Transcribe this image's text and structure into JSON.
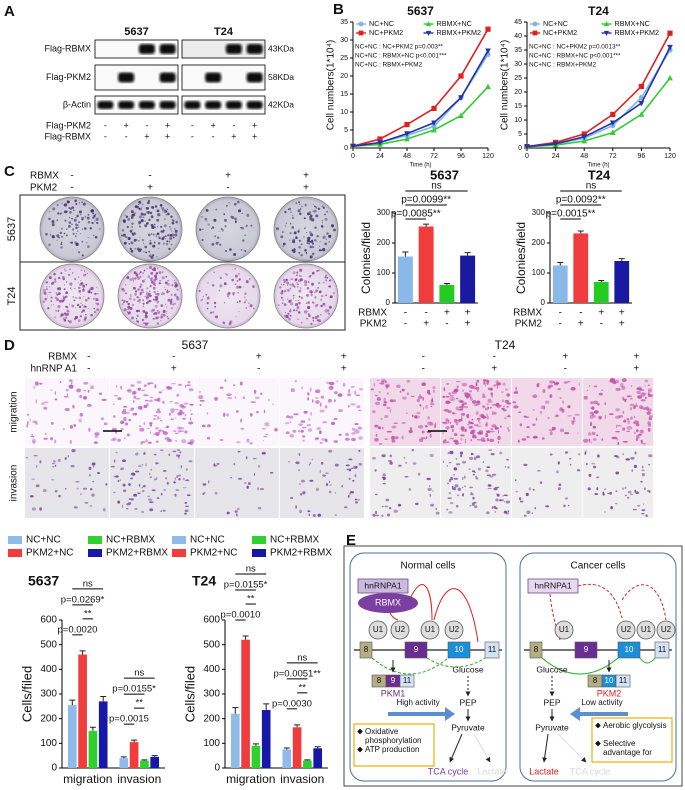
{
  "panel_labels": [
    "A",
    "B",
    "C",
    "D",
    "E"
  ],
  "blot": {
    "cell_lines": [
      "5637",
      "T24"
    ],
    "rows": [
      "Flag-RBMX",
      "Flag-PKM2",
      "β-Actin"
    ],
    "sizes": [
      "43KDa",
      "58KDa",
      "42KDa"
    ],
    "conditions": [
      {
        "name": "Flag-PKM2",
        "signs": [
          "-",
          "+",
          "-",
          "+",
          "-",
          "+",
          "-",
          "+"
        ]
      },
      {
        "name": "Flag-RBMX",
        "signs": [
          "-",
          "-",
          "+",
          "+",
          "-",
          "-",
          "+",
          "+"
        ]
      }
    ]
  },
  "colony": {
    "cell_lines": [
      "5637",
      "T24"
    ],
    "conditions": [
      {
        "name": "RBMX",
        "signs": [
          "-",
          "-",
          "+",
          "+"
        ]
      },
      {
        "name": "PKM2",
        "signs": [
          "-",
          "+",
          "-",
          "+"
        ]
      }
    ]
  },
  "transwell": {
    "cell_lines": [
      "5637",
      "T24"
    ],
    "assays": [
      "migration",
      "invasion"
    ],
    "conditions": [
      {
        "name": "RBMX",
        "signs": [
          "-",
          "-",
          "+",
          "+",
          "-",
          "-",
          "+",
          "+"
        ]
      },
      {
        "name": "hnRNP A1",
        "signs": [
          "-",
          "+",
          "-",
          "+",
          "-",
          "+",
          "-",
          "+"
        ]
      }
    ]
  },
  "diagram": {
    "normal": {
      "title": "Normal cells",
      "proteins": [
        "hnRNPA1",
        "RBMX"
      ],
      "snrnps": [
        "U1",
        "U2",
        "U1",
        "U2"
      ],
      "exons": [
        "8",
        "9",
        "10",
        "11"
      ],
      "mrna": [
        "8",
        "9",
        "11"
      ],
      "isoform": "PKM1",
      "activity": "High activity",
      "metabolites": [
        "Glucose",
        "PEP",
        "Pyruvate"
      ],
      "products": [
        "TCA cycle",
        "Lactate"
      ],
      "features": [
        "Oxidative phosphorylation",
        "ATP production"
      ]
    },
    "cancer": {
      "title": "Cancer cells",
      "proteins": [
        "hnRNPA1"
      ],
      "snrnps": [
        "U1",
        "U2",
        "U1",
        "U2"
      ],
      "exons": [
        "8",
        "9",
        "10",
        "11"
      ],
      "mrna": [
        "8",
        "10",
        "11"
      ],
      "isoform": "PKM2",
      "activity": "Low activity",
      "metabolites": [
        "Glucose",
        "PEP",
        "Pyruvate"
      ],
      "products": [
        "Lactate",
        "TCA cycle"
      ],
      "features": [
        "Aerobic glycolysis",
        "Selective advantage for cancer"
      ]
    }
  },
  "chart_data": [
    {
      "type": "line",
      "title": "5637",
      "x": [
        0,
        24,
        48,
        72,
        96,
        120
      ],
      "xlim": [
        0,
        120
      ],
      "xticks": [
        0,
        24,
        48,
        72,
        96,
        120
      ],
      "ylim": [
        0,
        35
      ],
      "yticks": [
        0,
        5,
        10,
        15,
        20,
        25,
        30,
        35
      ],
      "x_label": "Time (h)",
      "y_label": "Cell numbers(1*10⁴)",
      "series": [
        {
          "name": "NC+NC",
          "color": "#7fb3e6",
          "marker": "circle",
          "values": [
            0.5,
            1.5,
            3.5,
            6,
            14,
            26
          ]
        },
        {
          "name": "NC+PKM2",
          "color": "#e02020",
          "marker": "square",
          "values": [
            0.5,
            2.5,
            6.5,
            11,
            20,
            33
          ]
        },
        {
          "name": "RBMX+NC",
          "color": "#33cc33",
          "marker": "triangle-up",
          "values": [
            0.5,
            1,
            2.5,
            5,
            9,
            17
          ]
        },
        {
          "name": "RBMX+PKM2",
          "color": "#2233aa",
          "marker": "triangle-down",
          "values": [
            0.5,
            1.5,
            4,
            7,
            14,
            27
          ]
        }
      ],
      "annotations": [
        "NC+NC : NC+PKM2 p=0.003**",
        "NC+NC : RBMX+NC p<0.001***",
        "NC+NC : RBMX+PKM2"
      ]
    },
    {
      "type": "line",
      "title": "T24",
      "x": [
        0,
        24,
        48,
        72,
        96,
        120
      ],
      "xlim": [
        0,
        120
      ],
      "xticks": [
        0,
        24,
        48,
        72,
        96,
        120
      ],
      "ylim": [
        0,
        45
      ],
      "yticks": [
        0,
        5,
        10,
        15,
        20,
        25,
        30,
        35,
        40,
        45
      ],
      "x_label": "Time (h)",
      "y_label": "Cell numbers(1*10⁴)",
      "series": [
        {
          "name": "NC+NC",
          "color": "#7fb3e6",
          "marker": "circle",
          "values": [
            0.5,
            1.5,
            3.5,
            8,
            18,
            35
          ]
        },
        {
          "name": "NC+PKM2",
          "color": "#e02020",
          "marker": "square",
          "values": [
            0.5,
            2,
            5,
            12,
            22,
            41
          ]
        },
        {
          "name": "RBMX+NC",
          "color": "#33cc33",
          "marker": "triangle-up",
          "values": [
            0.5,
            1,
            2.5,
            5.5,
            12,
            25
          ]
        },
        {
          "name": "RBMX+PKM2",
          "color": "#2233aa",
          "marker": "triangle-down",
          "values": [
            0.5,
            1.5,
            4,
            9,
            16,
            36
          ]
        }
      ],
      "annotations": [
        "NC+NC : NC+PKM2 p=0.0013**",
        "NC+NC : RBMX+NC p<0.001***",
        "NC+NC : RBMX+PKM2"
      ]
    },
    {
      "type": "bar",
      "title": "5637",
      "values": [
        155,
        255,
        60,
        158
      ],
      "errors": [
        15,
        8,
        5,
        10
      ],
      "colors": [
        "#8ab8e8",
        "#f03c3c",
        "#22cc22",
        "#1a1aa0"
      ],
      "ylim": [
        0,
        300
      ],
      "yticks": [
        0,
        100,
        200,
        300
      ],
      "y_label": "Colonies/field",
      "annotations": [
        "ns",
        "p=0.0099**",
        "p=0.0085**"
      ],
      "group_labels": [
        {
          "name": "RBMX",
          "signs": [
            "-",
            "-",
            "+",
            "+"
          ]
        },
        {
          "name": "PKM2",
          "signs": [
            "-",
            "+",
            "-",
            "+"
          ]
        }
      ]
    },
    {
      "type": "bar",
      "title": "T24",
      "values": [
        125,
        232,
        70,
        140
      ],
      "errors": [
        10,
        8,
        5,
        8
      ],
      "colors": [
        "#8ab8e8",
        "#f03c3c",
        "#22cc22",
        "#1a1aa0"
      ],
      "ylim": [
        0,
        300
      ],
      "yticks": [
        0,
        100,
        200,
        300
      ],
      "y_label": "Colonies/field",
      "annotations": [
        "ns",
        "p=0.0092**",
        "p=0.0015**"
      ],
      "group_labels": [
        {
          "name": "RBMX",
          "signs": [
            "-",
            "-",
            "+",
            "+"
          ]
        },
        {
          "name": "PKM2",
          "signs": [
            "-",
            "+",
            "-",
            "+"
          ]
        }
      ]
    },
    {
      "type": "grouped_bar",
      "title": "5637",
      "categories": [
        "migration",
        "invasion"
      ],
      "ylim": [
        0,
        600
      ],
      "yticks": [
        0,
        100,
        200,
        300,
        400,
        500,
        600
      ],
      "y_label": "Cells/filed",
      "series": [
        {
          "name": "NC+NC",
          "color": "#8fbbe8",
          "values": [
            255,
            40
          ],
          "errors": [
            20,
            5
          ]
        },
        {
          "name": "PKM2+NC",
          "color": "#f03c3c",
          "values": [
            460,
            105
          ],
          "errors": [
            15,
            8
          ]
        },
        {
          "name": "NC+RBMX",
          "color": "#2ed12e",
          "values": [
            150,
            30
          ],
          "errors": [
            15,
            3
          ]
        },
        {
          "name": "PKM2+RBMX",
          "color": "#1818a8",
          "values": [
            270,
            45
          ],
          "errors": [
            20,
            5
          ]
        }
      ],
      "annotations": [
        [
          "ns",
          "p=0.0269*",
          "**",
          "p=0.0020"
        ],
        [
          "ns",
          "p=0.0155*",
          "**",
          "p=0.0015"
        ]
      ]
    },
    {
      "type": "grouped_bar",
      "title": "T24",
      "categories": [
        "migration",
        "invasion"
      ],
      "ylim": [
        0,
        600
      ],
      "yticks": [
        0,
        100,
        200,
        300,
        400,
        500,
        600
      ],
      "y_label": "Cells/filed",
      "series": [
        {
          "name": "NC+NC",
          "color": "#8fbbe8",
          "values": [
            220,
            75
          ],
          "errors": [
            25,
            6
          ]
        },
        {
          "name": "PKM2+NC",
          "color": "#f03c3c",
          "values": [
            520,
            165
          ],
          "errors": [
            15,
            10
          ]
        },
        {
          "name": "NC+RBMX",
          "color": "#2ed12e",
          "values": [
            90,
            30
          ],
          "errors": [
            8,
            3
          ]
        },
        {
          "name": "PKM2+RBMX",
          "color": "#1818a8",
          "values": [
            235,
            80
          ],
          "errors": [
            25,
            6
          ]
        }
      ],
      "annotations": [
        [
          "ns",
          "p=0.0155*",
          "**",
          "p=0.0010"
        ],
        [
          "ns",
          "p=0.0051**",
          "**",
          "p=0.0030"
        ]
      ]
    }
  ]
}
